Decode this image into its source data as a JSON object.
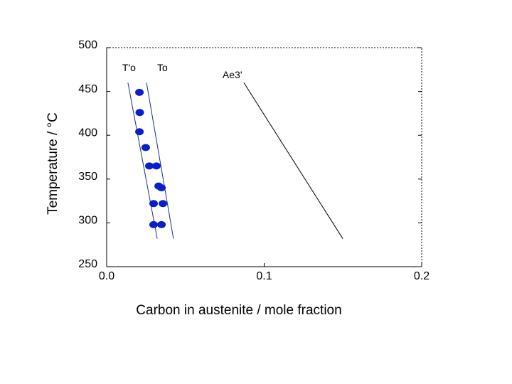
{
  "chart_data": {
    "type": "scatter",
    "x_label": "Carbon in austenite / mole fraction",
    "y_label": "Temperature / °C",
    "xlim": [
      0,
      0.2
    ],
    "ylim": [
      250,
      500
    ],
    "xticks": [
      {
        "value": 0,
        "label": "0.0"
      },
      0.1,
      0.2
    ],
    "yticks": [
      250,
      300,
      350,
      400,
      450,
      500
    ],
    "series": [
      {
        "color": "#0a1ecc",
        "x": [
          0.0208,
          0.021,
          0.0208,
          0.0248,
          0.0271,
          0.0316,
          0.033,
          0.0348,
          0.0298,
          0.0357,
          0.0298,
          0.0348
        ],
        "values": [
          449,
          426,
          404,
          386,
          365,
          365,
          342,
          340,
          322,
          322,
          298,
          298
        ]
      }
    ],
    "lines": [
      {
        "label": "T'o",
        "color": "#1a2a9a",
        "x": [
          0.0135,
          0.0321
        ],
        "y": [
          460,
          282
        ]
      },
      {
        "label": "To",
        "color": "#1a2a9a",
        "x": [
          0.0253,
          0.0424
        ],
        "y": [
          460,
          282
        ]
      },
      {
        "label": "Ae3'",
        "color": "#000000",
        "x": [
          0.0871,
          0.1499
        ],
        "y": [
          460,
          282
        ]
      }
    ]
  }
}
